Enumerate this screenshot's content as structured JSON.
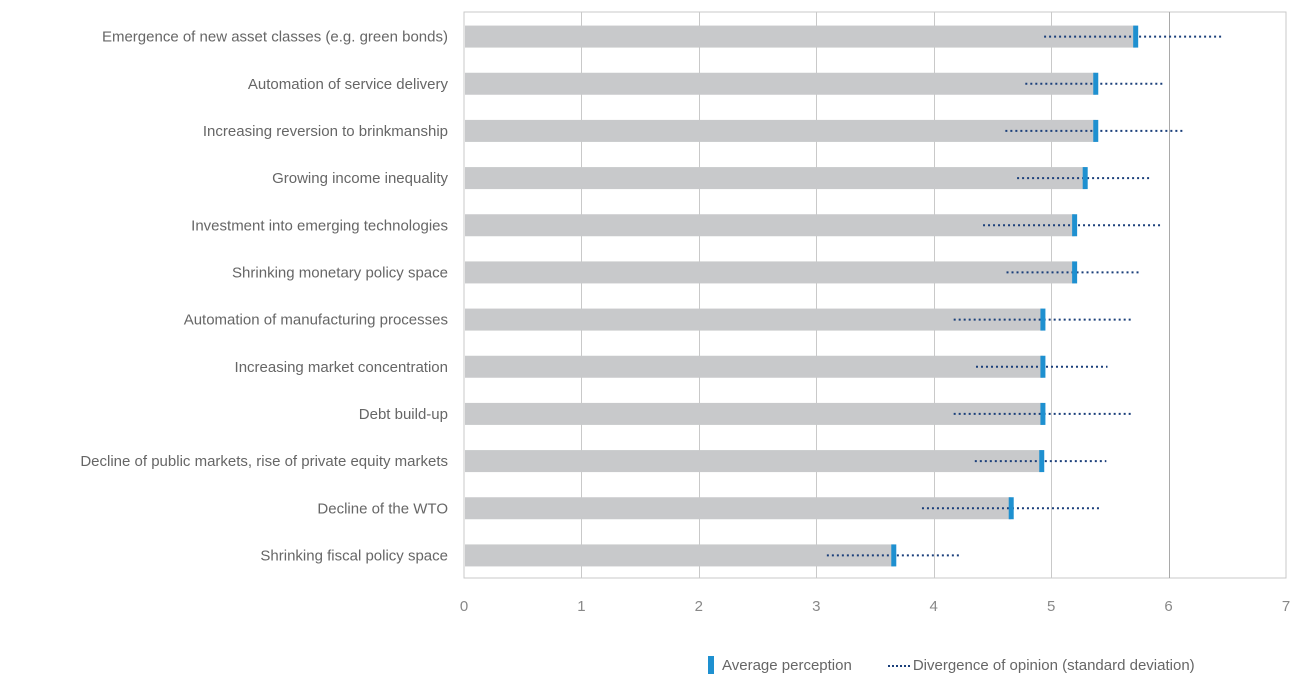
{
  "chart_data": {
    "type": "bar",
    "orientation": "horizontal",
    "categories": [
      "Emergence of new asset classes (e.g. green bonds)",
      "Automation of service delivery",
      "Increasing reversion to brinkmanship",
      "Growing income inequality",
      "Investment into emerging technologies",
      "Shrinking monetary policy space",
      "Automation of manufacturing processes",
      "Increasing market concentration",
      "Debt build-up",
      "Decline of public markets, rise of private equity markets",
      "Decline of the WTO",
      "Shrinking fiscal policy space"
    ],
    "series": [
      {
        "name": "Average perception",
        "values": [
          5.72,
          5.38,
          5.38,
          5.29,
          5.2,
          5.2,
          4.93,
          4.93,
          4.93,
          4.92,
          4.66,
          3.66
        ]
      },
      {
        "name": "Divergence of opinion (standard deviation)",
        "low": [
          4.94,
          4.78,
          4.61,
          4.71,
          4.42,
          4.62,
          4.17,
          4.36,
          4.17,
          4.35,
          3.9,
          3.09
        ],
        "high": [
          6.47,
          5.95,
          6.13,
          5.84,
          5.95,
          5.75,
          5.68,
          5.48,
          5.68,
          5.47,
          5.41,
          4.22
        ]
      }
    ],
    "xlim": [
      0,
      7
    ],
    "xticks": [
      "0",
      "1",
      "2",
      "3",
      "4",
      "5",
      "6",
      "7"
    ],
    "grid": true,
    "legend_position": "bottom-right",
    "colors": {
      "bar": "#c8c9cb",
      "mean_marker": "#1e90d0",
      "divergence": "#1a3f7a",
      "grid": "#c9c9c9",
      "highlight_grid": "#a9a9a9"
    }
  },
  "legend": {
    "mean_label": "Average perception",
    "divergence_label": "Divergence of opinion (standard deviation)"
  }
}
